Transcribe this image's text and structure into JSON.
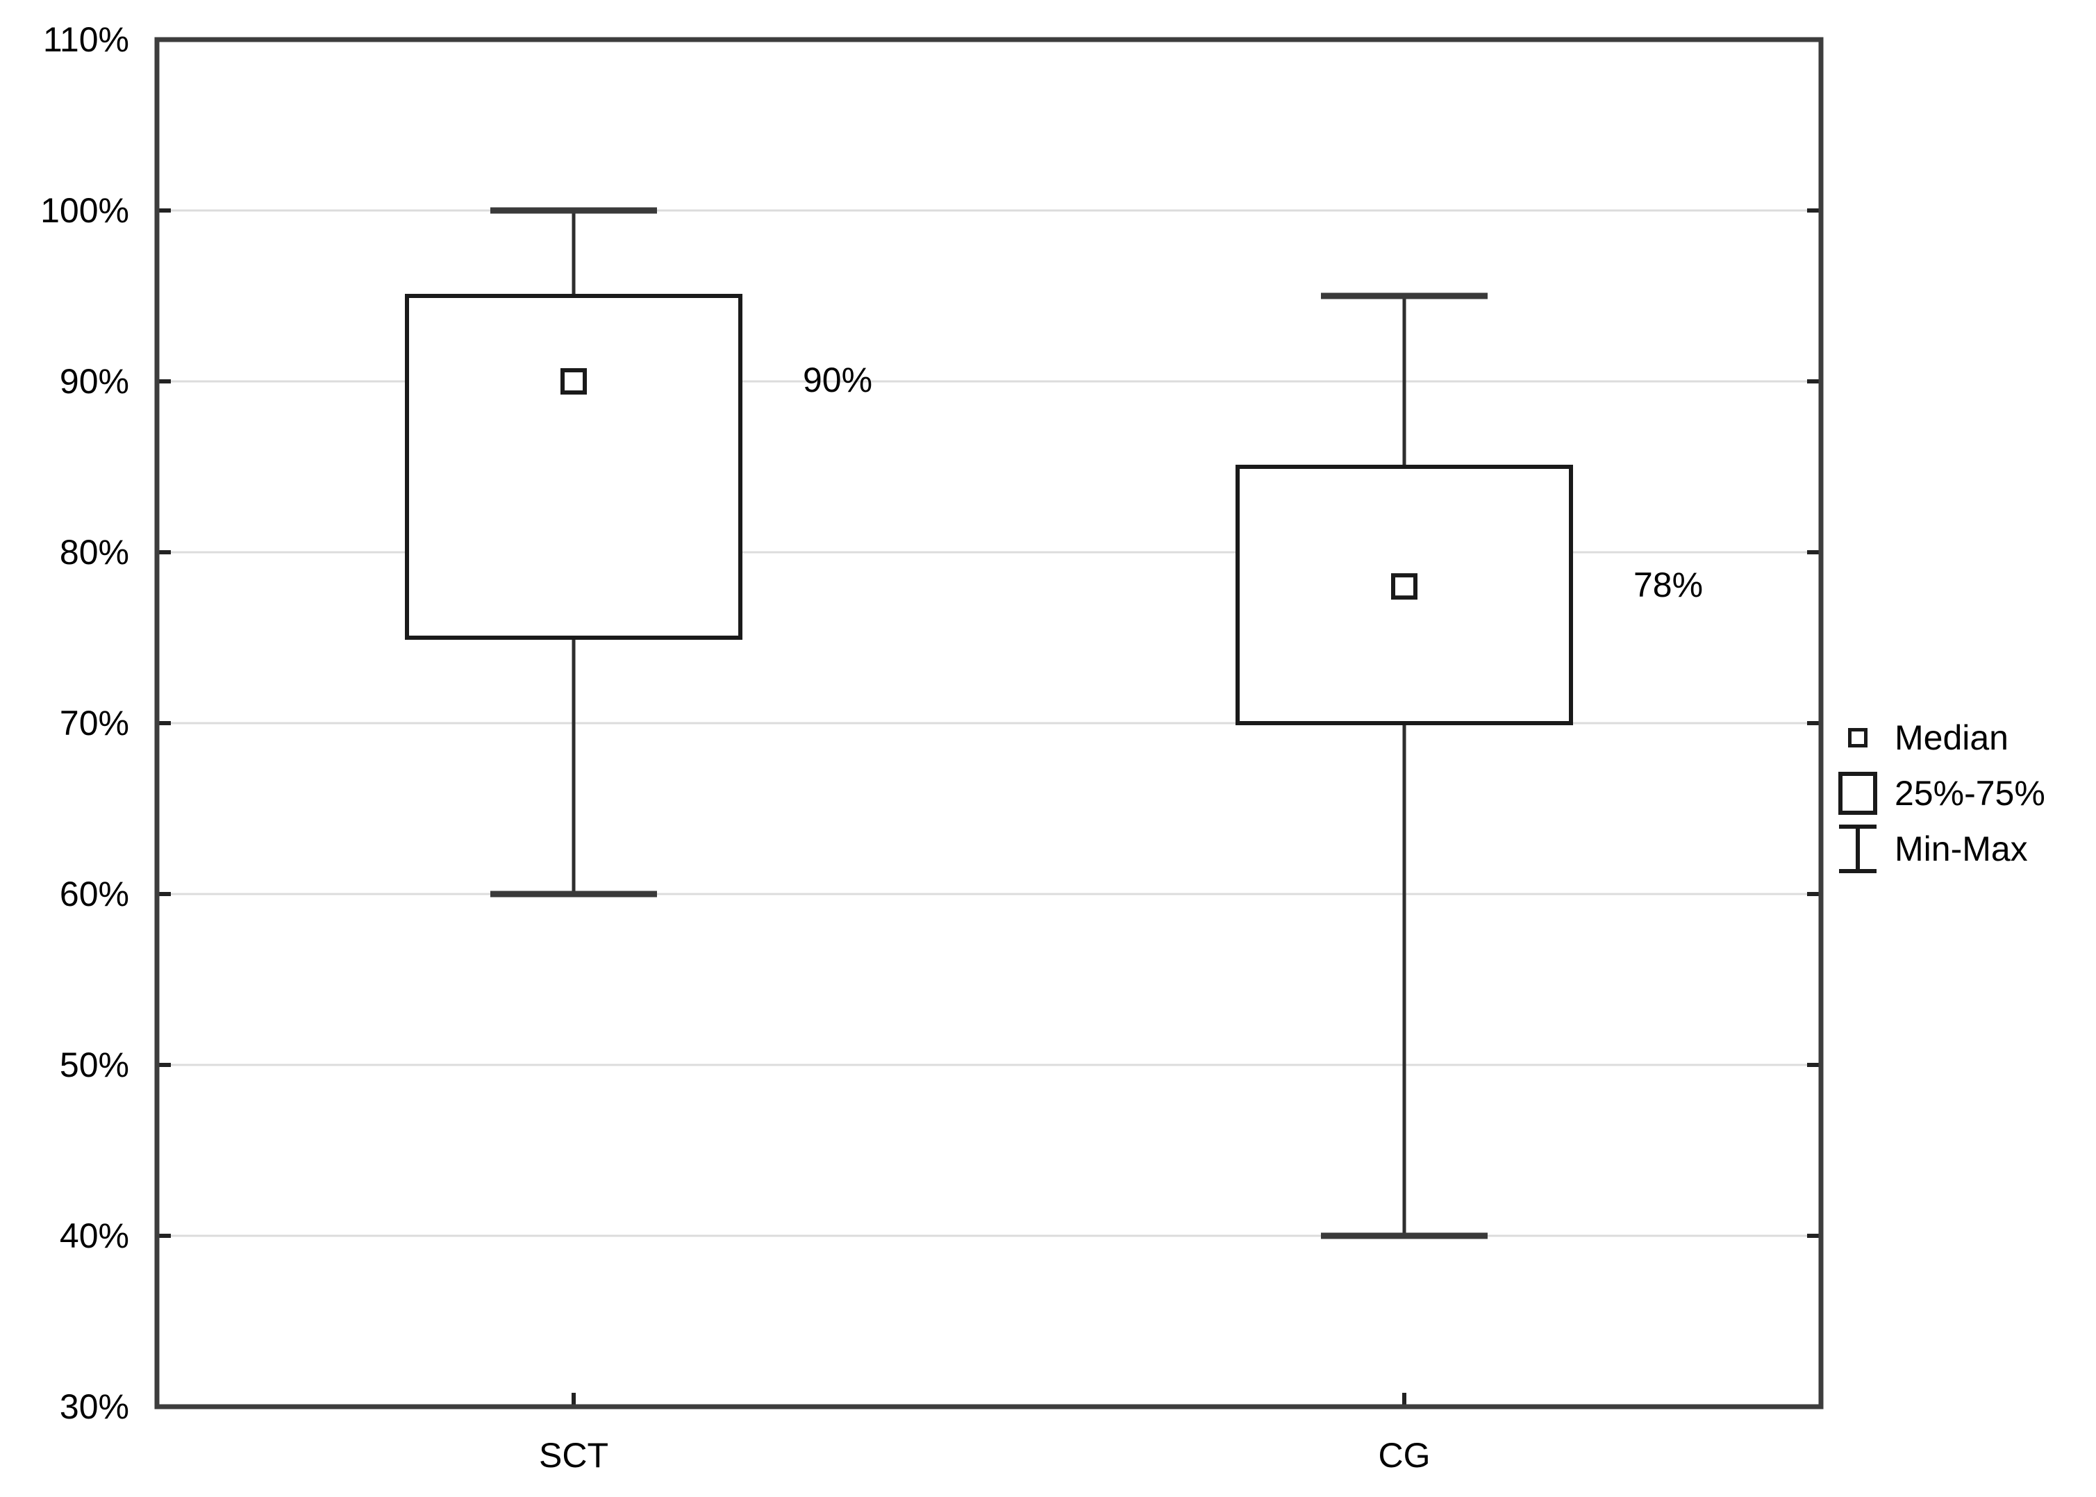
{
  "chart_data": {
    "type": "box",
    "title": "",
    "xlabel": "",
    "ylabel": "",
    "categories": [
      "SCT",
      "CG"
    ],
    "series": [
      {
        "category": "SCT",
        "min": 60,
        "q1": 75,
        "median": 90,
        "q3": 95,
        "max": 100,
        "annotation": "90%"
      },
      {
        "category": "CG",
        "min": 40,
        "q1": 70,
        "median": 78,
        "q3": 85,
        "max": 95,
        "annotation": "78%"
      }
    ],
    "ylim": [
      30,
      110
    ],
    "y_tick_step": 10,
    "y_tick_values": [
      110,
      100,
      90,
      80,
      70,
      60,
      50,
      40,
      30
    ],
    "y_tick_labels": [
      "110%",
      "100%",
      "90%",
      "80%",
      "70%",
      "60%",
      "50%",
      "40%",
      "30%"
    ],
    "grid": "horizontal",
    "legend": {
      "position": "right",
      "items": [
        {
          "icon": "median-square-icon",
          "label": "Median"
        },
        {
          "icon": "quartile-box-icon",
          "label": "25%-75%"
        },
        {
          "icon": "min-max-whisker-icon",
          "label": "Min-Max"
        }
      ]
    },
    "colors": {
      "background": "#ffffff",
      "text": "#000000",
      "plot_border": "#3d3d3d",
      "gridline": "#dcdcdc",
      "box_stroke": "#1a1a1a",
      "whisker_line": "#2e2e2e",
      "whisker_cap": "#3a3a3a",
      "box_fill": "#ffffff"
    }
  }
}
